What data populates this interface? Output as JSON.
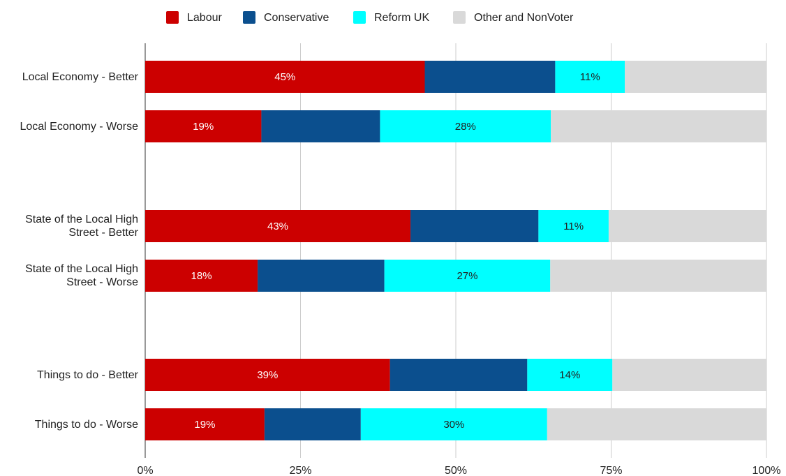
{
  "chart_data": {
    "type": "bar",
    "orientation": "horizontal",
    "stacked": "percent",
    "categories": [
      "Local Economy - Better",
      "Local Economy - Worse",
      "State of the Local High Street - Better",
      "State of the Local High Street - Worse",
      "Things to do - Better",
      "Things to do - Worse"
    ],
    "series": [
      {
        "name": "Labour",
        "color": "#cc0000",
        "values": [
          45,
          18.7,
          42.7,
          18.1,
          39.4,
          19.2
        ],
        "labels": [
          "45%",
          "19%",
          "43%",
          "18%",
          "39%",
          "19%"
        ]
      },
      {
        "name": "Conservative",
        "color": "#0b4f8e",
        "values": [
          21,
          19.1,
          20.6,
          20.4,
          22.1,
          15.5
        ],
        "labels": [
          "",
          "",
          "",
          "",
          "",
          ""
        ]
      },
      {
        "name": "Reform UK",
        "color": "#00ffff",
        "values": [
          11.2,
          27.5,
          11.3,
          26.7,
          13.7,
          30
        ],
        "labels": [
          "11%",
          "28%",
          "11%",
          "27%",
          "14%",
          "30%"
        ]
      },
      {
        "name": "Other and NonVoter",
        "color": "#d9d9d9",
        "values": [
          22.8,
          34.7,
          25.4,
          34.8,
          24.8,
          35.3
        ],
        "labels": [
          "",
          "",
          "",
          "",
          "",
          ""
        ]
      }
    ],
    "xlim": [
      0,
      100
    ],
    "x_ticks": [
      "0%",
      "25%",
      "50%",
      "75%",
      "100%"
    ],
    "grid": true,
    "legend_position": "top",
    "title": "",
    "xlabel": "",
    "ylabel": ""
  }
}
